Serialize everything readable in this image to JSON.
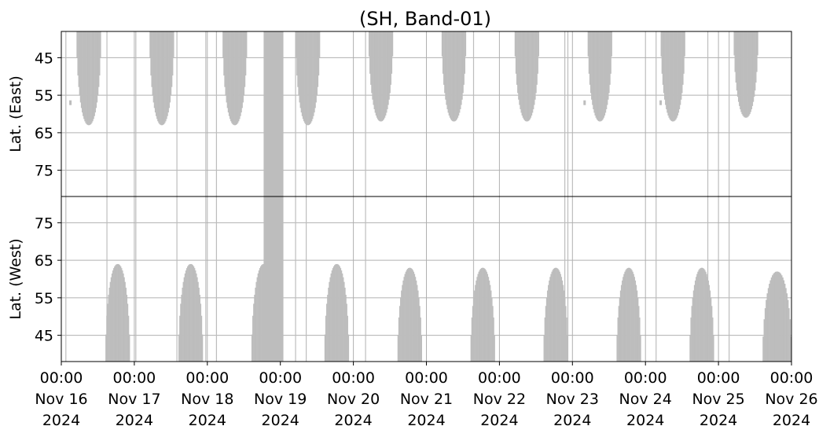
{
  "chart_data": {
    "type": "heatmap",
    "title": "(SH, Band-01)",
    "x_axis": {
      "range": [
        "2024-11-16 00:00",
        "2024-11-26 00:00"
      ],
      "ticks": [
        {
          "time": "00:00",
          "date": "Nov 16",
          "year": "2024"
        },
        {
          "time": "00:00",
          "date": "Nov 17",
          "year": "2024"
        },
        {
          "time": "00:00",
          "date": "Nov 18",
          "year": "2024"
        },
        {
          "time": "00:00",
          "date": "Nov 19",
          "year": "2024"
        },
        {
          "time": "00:00",
          "date": "Nov 20",
          "year": "2024"
        },
        {
          "time": "00:00",
          "date": "Nov 21",
          "year": "2024"
        },
        {
          "time": "00:00",
          "date": "Nov 22",
          "year": "2024"
        },
        {
          "time": "00:00",
          "date": "Nov 23",
          "year": "2024"
        },
        {
          "time": "00:00",
          "date": "Nov 24",
          "year": "2024"
        },
        {
          "time": "00:00",
          "date": "Nov 25",
          "year": "2024"
        },
        {
          "time": "00:00",
          "date": "Nov 26",
          "year": "2024"
        }
      ]
    },
    "panels": [
      {
        "ylabel": "Lat. (East)",
        "yticks": [
          45,
          55,
          65,
          75
        ],
        "ylim": [
          38,
          82
        ],
        "y_inverted": true,
        "coverage": [
          {
            "start": "2024-11-16 05:00",
            "end": "2024-11-16 13:00",
            "lat_max": 63
          },
          {
            "start": "2024-11-17 05:00",
            "end": "2024-11-17 13:00",
            "lat_max": 63
          },
          {
            "start": "2024-11-18 05:00",
            "end": "2024-11-18 13:00",
            "lat_max": 63
          },
          {
            "start": "2024-11-19 05:00",
            "end": "2024-11-19 13:00",
            "lat_max": 63
          },
          {
            "start": "2024-11-20 05:00",
            "end": "2024-11-20 13:00",
            "lat_max": 62
          },
          {
            "start": "2024-11-21 05:00",
            "end": "2024-11-21 13:00",
            "lat_max": 62
          },
          {
            "start": "2024-11-22 05:00",
            "end": "2024-11-22 13:00",
            "lat_max": 62
          },
          {
            "start": "2024-11-23 05:00",
            "end": "2024-11-23 13:00",
            "lat_max": 62
          },
          {
            "start": "2024-11-24 05:00",
            "end": "2024-11-24 13:00",
            "lat_max": 62
          },
          {
            "start": "2024-11-25 05:00",
            "end": "2024-11-25 13:00",
            "lat_max": 61
          }
        ],
        "markers": [
          {
            "time": "2024-11-16 03:00",
            "lat": 57
          },
          {
            "time": "2024-11-23 04:00",
            "lat": 57
          },
          {
            "time": "2024-11-24 05:00",
            "lat": 57
          }
        ]
      },
      {
        "ylabel": "Lat. (West)",
        "yticks": [
          75,
          65,
          55,
          45
        ],
        "ylim": [
          38,
          82
        ],
        "y_inverted": false,
        "coverage": [
          {
            "start": "2024-11-16 14:30",
            "end": "2024-11-16 22:30",
            "lat_max": 64
          },
          {
            "start": "2024-11-17 14:30",
            "end": "2024-11-17 22:30",
            "lat_max": 64
          },
          {
            "start": "2024-11-18 14:30",
            "end": "2024-11-18 22:30",
            "lat_max": 64
          },
          {
            "start": "2024-11-19 14:30",
            "end": "2024-11-19 22:30",
            "lat_max": 64
          },
          {
            "start": "2024-11-20 14:30",
            "end": "2024-11-20 22:30",
            "lat_max": 63
          },
          {
            "start": "2024-11-21 14:30",
            "end": "2024-11-21 22:30",
            "lat_max": 63
          },
          {
            "start": "2024-11-22 14:30",
            "end": "2024-11-22 22:30",
            "lat_max": 63
          },
          {
            "start": "2024-11-23 14:30",
            "end": "2024-11-23 22:30",
            "lat_max": 63
          },
          {
            "start": "2024-11-24 14:30",
            "end": "2024-11-24 22:30",
            "lat_max": 63
          },
          {
            "start": "2024-11-25 14:30",
            "end": "2024-11-26 00:00",
            "lat_max": 62
          }
        ]
      }
    ],
    "full_column_spans": [
      {
        "start": "2024-11-18 18:30",
        "end": "2024-11-19 01:00"
      }
    ],
    "vertical_lines": [
      "2024-11-16 01:30",
      "2024-11-16 15:00",
      "2024-11-17 00:30",
      "2024-11-17 14:00",
      "2024-11-17 23:30",
      "2024-11-18 03:00",
      "2024-11-19 05:00",
      "2024-11-19 08:30",
      "2024-11-20 04:00",
      "2024-11-21 15:30",
      "2024-11-22 21:30",
      "2024-11-22 22:30",
      "2024-11-24 03:30",
      "2024-11-24 20:30",
      "2024-11-25 03:30"
    ],
    "grid": true,
    "colors": {
      "fill": "#bdbdbd",
      "grid": "#b0b0b0",
      "axis": "#000000"
    }
  }
}
